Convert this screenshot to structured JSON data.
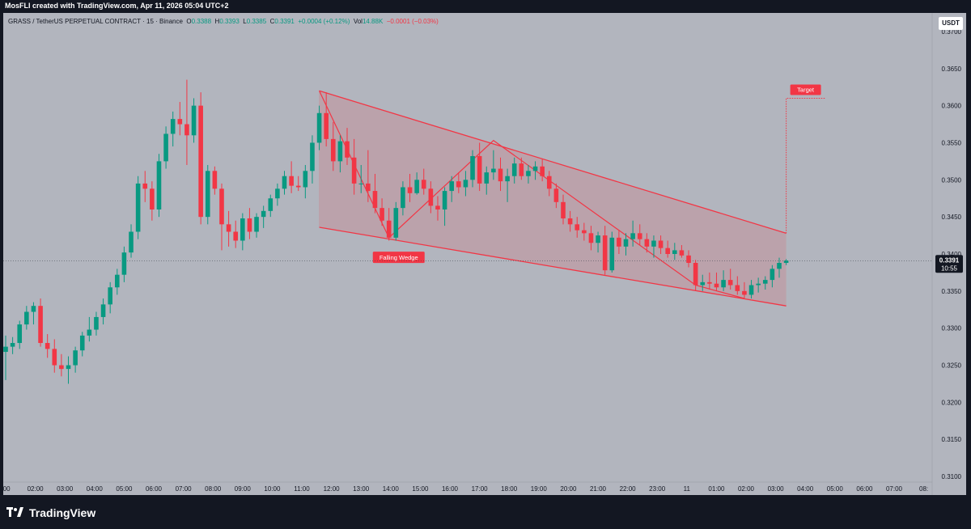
{
  "header": {
    "created_by": "MosFLI created with TradingView.com, Apr 11, 2026 05:04 UTC+2",
    "symbol": "GRASS / TetherUS PERPETUAL CONTRACT · 15 · Binance",
    "o_label": "O",
    "o": "0.3388",
    "h_label": "H",
    "h": "0.3393",
    "l_label": "L",
    "l": "0.3385",
    "c_label": "C",
    "c": "0.3391",
    "change": "+0.0004 (+0.12%)",
    "vol_label": "Vol",
    "vol": "14.88K",
    "vol_change": "−0.0001 (−0.03%)",
    "currency_button": "USDT"
  },
  "footer": {
    "brand": "TradingView",
    "brand_icon": "tradingview-logo-icon"
  },
  "colors": {
    "up": "#089981",
    "down": "#f23645",
    "background": "#b2b5be",
    "frame": "#131722",
    "wedge_fill": "#f23645"
  },
  "chart_data": {
    "type": "candlestick",
    "timeframe": "15",
    "ylim": [
      0.3075,
      0.3725
    ],
    "y_ticks": [
      "0.3700",
      "0.3650",
      "0.3600",
      "0.3550",
      "0.3500",
      "0.3450",
      "0.3400",
      "0.3350",
      "0.3300",
      "0.3250",
      "0.3200",
      "0.3150",
      "0.3100"
    ],
    "x_ticks": [
      ":00",
      "02:00",
      "03:00",
      "04:00",
      "05:00",
      "06:00",
      "07:00",
      "08:00",
      "09:00",
      "10:00",
      "11:00",
      "12:00",
      "13:00",
      "14:00",
      "15:00",
      "16:00",
      "17:00",
      "18:00",
      "19:00",
      "20:00",
      "21:00",
      "22:00",
      "23:00",
      "11",
      "01:00",
      "02:00",
      "03:00",
      "04:00",
      "05:00",
      "06:00",
      "07:00",
      "08:"
    ],
    "last_price": "0.3391",
    "countdown": "10:55",
    "candles": [
      {
        "t": 0,
        "o": 0.3268,
        "h": 0.329,
        "l": 0.323,
        "c": 0.3275
      },
      {
        "t": 0.25,
        "o": 0.3275,
        "h": 0.3288,
        "l": 0.3265,
        "c": 0.328
      },
      {
        "t": 0.5,
        "o": 0.328,
        "h": 0.331,
        "l": 0.3272,
        "c": 0.3305
      },
      {
        "t": 0.75,
        "o": 0.3305,
        "h": 0.333,
        "l": 0.3298,
        "c": 0.3322
      },
      {
        "t": 1,
        "o": 0.3322,
        "h": 0.3335,
        "l": 0.3305,
        "c": 0.333
      },
      {
        "t": 1.25,
        "o": 0.333,
        "h": 0.334,
        "l": 0.3275,
        "c": 0.328
      },
      {
        "t": 1.5,
        "o": 0.328,
        "h": 0.3292,
        "l": 0.326,
        "c": 0.3272
      },
      {
        "t": 1.75,
        "o": 0.3272,
        "h": 0.3285,
        "l": 0.324,
        "c": 0.325
      },
      {
        "t": 2,
        "o": 0.325,
        "h": 0.3265,
        "l": 0.3235,
        "c": 0.3245
      },
      {
        "t": 2.25,
        "o": 0.3245,
        "h": 0.3262,
        "l": 0.3225,
        "c": 0.325
      },
      {
        "t": 2.5,
        "o": 0.325,
        "h": 0.3275,
        "l": 0.324,
        "c": 0.327
      },
      {
        "t": 2.75,
        "o": 0.327,
        "h": 0.3295,
        "l": 0.3262,
        "c": 0.329
      },
      {
        "t": 3,
        "o": 0.329,
        "h": 0.3315,
        "l": 0.3282,
        "c": 0.3298
      },
      {
        "t": 3.25,
        "o": 0.3298,
        "h": 0.3322,
        "l": 0.329,
        "c": 0.3315
      },
      {
        "t": 3.5,
        "o": 0.3315,
        "h": 0.334,
        "l": 0.3305,
        "c": 0.3332
      },
      {
        "t": 3.75,
        "o": 0.3332,
        "h": 0.3362,
        "l": 0.332,
        "c": 0.3355
      },
      {
        "t": 4,
        "o": 0.3355,
        "h": 0.338,
        "l": 0.3345,
        "c": 0.3372
      },
      {
        "t": 4.25,
        "o": 0.3372,
        "h": 0.341,
        "l": 0.3362,
        "c": 0.3402
      },
      {
        "t": 4.5,
        "o": 0.3402,
        "h": 0.344,
        "l": 0.3395,
        "c": 0.343
      },
      {
        "t": 4.75,
        "o": 0.343,
        "h": 0.3505,
        "l": 0.342,
        "c": 0.3495
      },
      {
        "t": 5,
        "o": 0.3495,
        "h": 0.3512,
        "l": 0.347,
        "c": 0.3488
      },
      {
        "t": 5.25,
        "o": 0.3488,
        "h": 0.3498,
        "l": 0.3445,
        "c": 0.346
      },
      {
        "t": 5.5,
        "o": 0.346,
        "h": 0.3535,
        "l": 0.345,
        "c": 0.3525
      },
      {
        "t": 5.75,
        "o": 0.3525,
        "h": 0.3572,
        "l": 0.3515,
        "c": 0.3562
      },
      {
        "t": 6,
        "o": 0.3562,
        "h": 0.3592,
        "l": 0.3545,
        "c": 0.3582
      },
      {
        "t": 6.25,
        "o": 0.3582,
        "h": 0.3605,
        "l": 0.356,
        "c": 0.3575
      },
      {
        "t": 6.5,
        "o": 0.3575,
        "h": 0.3635,
        "l": 0.352,
        "c": 0.356
      },
      {
        "t": 6.75,
        "o": 0.356,
        "h": 0.361,
        "l": 0.355,
        "c": 0.36
      },
      {
        "t": 7,
        "o": 0.36,
        "h": 0.3618,
        "l": 0.344,
        "c": 0.345
      },
      {
        "t": 7.25,
        "o": 0.345,
        "h": 0.352,
        "l": 0.344,
        "c": 0.3512
      },
      {
        "t": 7.5,
        "o": 0.3512,
        "h": 0.3518,
        "l": 0.348,
        "c": 0.3488
      },
      {
        "t": 7.75,
        "o": 0.3488,
        "h": 0.3495,
        "l": 0.3405,
        "c": 0.344
      },
      {
        "t": 8,
        "o": 0.344,
        "h": 0.3458,
        "l": 0.341,
        "c": 0.343
      },
      {
        "t": 8.25,
        "o": 0.343,
        "h": 0.3445,
        "l": 0.3408,
        "c": 0.3418
      },
      {
        "t": 8.5,
        "o": 0.3418,
        "h": 0.3455,
        "l": 0.3405,
        "c": 0.3448
      },
      {
        "t": 8.75,
        "o": 0.3448,
        "h": 0.3462,
        "l": 0.342,
        "c": 0.343
      },
      {
        "t": 9,
        "o": 0.343,
        "h": 0.3455,
        "l": 0.3422,
        "c": 0.345
      },
      {
        "t": 9.25,
        "o": 0.345,
        "h": 0.3465,
        "l": 0.3435,
        "c": 0.3458
      },
      {
        "t": 9.5,
        "o": 0.3458,
        "h": 0.348,
        "l": 0.345,
        "c": 0.3475
      },
      {
        "t": 9.75,
        "o": 0.3475,
        "h": 0.3495,
        "l": 0.3465,
        "c": 0.3488
      },
      {
        "t": 10,
        "o": 0.3488,
        "h": 0.3512,
        "l": 0.348,
        "c": 0.3505
      },
      {
        "t": 10.25,
        "o": 0.3505,
        "h": 0.3525,
        "l": 0.3482,
        "c": 0.3492
      },
      {
        "t": 10.5,
        "o": 0.3492,
        "h": 0.3505,
        "l": 0.3485,
        "c": 0.349
      },
      {
        "t": 10.75,
        "o": 0.349,
        "h": 0.352,
        "l": 0.3475,
        "c": 0.3512
      },
      {
        "t": 11,
        "o": 0.3512,
        "h": 0.356,
        "l": 0.3495,
        "c": 0.355
      },
      {
        "t": 11.25,
        "o": 0.355,
        "h": 0.36,
        "l": 0.354,
        "c": 0.359
      },
      {
        "t": 11.5,
        "o": 0.359,
        "h": 0.3618,
        "l": 0.3545,
        "c": 0.3555
      },
      {
        "t": 11.75,
        "o": 0.3555,
        "h": 0.3578,
        "l": 0.3512,
        "c": 0.3525
      },
      {
        "t": 12,
        "o": 0.3525,
        "h": 0.356,
        "l": 0.351,
        "c": 0.3552
      },
      {
        "t": 12.25,
        "o": 0.3552,
        "h": 0.357,
        "l": 0.352,
        "c": 0.353
      },
      {
        "t": 12.5,
        "o": 0.353,
        "h": 0.3555,
        "l": 0.348,
        "c": 0.3495
      },
      {
        "t": 12.75,
        "o": 0.3495,
        "h": 0.352,
        "l": 0.3482,
        "c": 0.3495
      },
      {
        "t": 13,
        "o": 0.3495,
        "h": 0.354,
        "l": 0.347,
        "c": 0.3485
      },
      {
        "t": 13.25,
        "o": 0.3485,
        "h": 0.3508,
        "l": 0.3455,
        "c": 0.3462
      },
      {
        "t": 13.5,
        "o": 0.3462,
        "h": 0.3475,
        "l": 0.3438,
        "c": 0.3445
      },
      {
        "t": 13.75,
        "o": 0.3445,
        "h": 0.3462,
        "l": 0.3418,
        "c": 0.3422
      },
      {
        "t": 14,
        "o": 0.3422,
        "h": 0.347,
        "l": 0.3418,
        "c": 0.3462
      },
      {
        "t": 14.25,
        "o": 0.3462,
        "h": 0.3498,
        "l": 0.3452,
        "c": 0.349
      },
      {
        "t": 14.5,
        "o": 0.349,
        "h": 0.3508,
        "l": 0.347,
        "c": 0.3482
      },
      {
        "t": 14.75,
        "o": 0.3482,
        "h": 0.351,
        "l": 0.348,
        "c": 0.35
      },
      {
        "t": 15,
        "o": 0.35,
        "h": 0.3515,
        "l": 0.348,
        "c": 0.3488
      },
      {
        "t": 15.25,
        "o": 0.3488,
        "h": 0.3498,
        "l": 0.3455,
        "c": 0.3465
      },
      {
        "t": 15.5,
        "o": 0.3465,
        "h": 0.3478,
        "l": 0.3445,
        "c": 0.346
      },
      {
        "t": 15.75,
        "o": 0.346,
        "h": 0.349,
        "l": 0.3438,
        "c": 0.3485
      },
      {
        "t": 16,
        "o": 0.3485,
        "h": 0.3505,
        "l": 0.347,
        "c": 0.3498
      },
      {
        "t": 16.25,
        "o": 0.3498,
        "h": 0.351,
        "l": 0.3482,
        "c": 0.349
      },
      {
        "t": 16.5,
        "o": 0.349,
        "h": 0.3512,
        "l": 0.3478,
        "c": 0.35
      },
      {
        "t": 16.75,
        "o": 0.35,
        "h": 0.354,
        "l": 0.349,
        "c": 0.3532
      },
      {
        "t": 17,
        "o": 0.3532,
        "h": 0.355,
        "l": 0.3485,
        "c": 0.3495
      },
      {
        "t": 17.25,
        "o": 0.3495,
        "h": 0.3518,
        "l": 0.348,
        "c": 0.351
      },
      {
        "t": 17.5,
        "o": 0.351,
        "h": 0.354,
        "l": 0.35,
        "c": 0.3515
      },
      {
        "t": 17.75,
        "o": 0.3515,
        "h": 0.353,
        "l": 0.3485,
        "c": 0.3498
      },
      {
        "t": 18,
        "o": 0.3498,
        "h": 0.3515,
        "l": 0.347,
        "c": 0.3505
      },
      {
        "t": 18.25,
        "o": 0.3505,
        "h": 0.353,
        "l": 0.3495,
        "c": 0.3522
      },
      {
        "t": 18.5,
        "o": 0.3522,
        "h": 0.353,
        "l": 0.35,
        "c": 0.3505
      },
      {
        "t": 18.75,
        "o": 0.3505,
        "h": 0.352,
        "l": 0.3495,
        "c": 0.3512
      },
      {
        "t": 19,
        "o": 0.3512,
        "h": 0.3525,
        "l": 0.35,
        "c": 0.3518
      },
      {
        "t": 19.25,
        "o": 0.3518,
        "h": 0.3528,
        "l": 0.3498,
        "c": 0.3505
      },
      {
        "t": 19.5,
        "o": 0.3505,
        "h": 0.3512,
        "l": 0.3478,
        "c": 0.3488
      },
      {
        "t": 19.75,
        "o": 0.3488,
        "h": 0.3495,
        "l": 0.3462,
        "c": 0.347
      },
      {
        "t": 20,
        "o": 0.347,
        "h": 0.348,
        "l": 0.344,
        "c": 0.3448
      },
      {
        "t": 20.25,
        "o": 0.3448,
        "h": 0.3458,
        "l": 0.343,
        "c": 0.344
      },
      {
        "t": 20.5,
        "o": 0.344,
        "h": 0.345,
        "l": 0.3422,
        "c": 0.3432
      },
      {
        "t": 20.75,
        "o": 0.3432,
        "h": 0.3442,
        "l": 0.3418,
        "c": 0.3428
      },
      {
        "t": 21,
        "o": 0.3428,
        "h": 0.3438,
        "l": 0.3405,
        "c": 0.3415
      },
      {
        "t": 21.25,
        "o": 0.3415,
        "h": 0.343,
        "l": 0.3402,
        "c": 0.3425
      },
      {
        "t": 21.5,
        "o": 0.3425,
        "h": 0.3438,
        "l": 0.3372,
        "c": 0.3378
      },
      {
        "t": 21.75,
        "o": 0.3378,
        "h": 0.343,
        "l": 0.3375,
        "c": 0.3422
      },
      {
        "t": 22,
        "o": 0.3422,
        "h": 0.3432,
        "l": 0.34,
        "c": 0.341
      },
      {
        "t": 22.25,
        "o": 0.341,
        "h": 0.3428,
        "l": 0.3398,
        "c": 0.342
      },
      {
        "t": 22.5,
        "o": 0.342,
        "h": 0.3445,
        "l": 0.341,
        "c": 0.3428
      },
      {
        "t": 22.75,
        "o": 0.3428,
        "h": 0.344,
        "l": 0.3412,
        "c": 0.342
      },
      {
        "t": 23,
        "o": 0.342,
        "h": 0.3428,
        "l": 0.3402,
        "c": 0.341
      },
      {
        "t": 23.25,
        "o": 0.341,
        "h": 0.3425,
        "l": 0.3395,
        "c": 0.3418
      },
      {
        "t": 23.5,
        "o": 0.3418,
        "h": 0.3425,
        "l": 0.34,
        "c": 0.3408
      },
      {
        "t": 23.75,
        "o": 0.3408,
        "h": 0.3418,
        "l": 0.3395,
        "c": 0.34
      },
      {
        "t": 24,
        "o": 0.34,
        "h": 0.3415,
        "l": 0.3392,
        "c": 0.3405
      },
      {
        "t": 24.25,
        "o": 0.3405,
        "h": 0.3412,
        "l": 0.3395,
        "c": 0.3398
      },
      {
        "t": 24.5,
        "o": 0.3398,
        "h": 0.3405,
        "l": 0.3382,
        "c": 0.3388
      },
      {
        "t": 24.75,
        "o": 0.3388,
        "h": 0.3392,
        "l": 0.335,
        "c": 0.3358
      },
      {
        "t": 25,
        "o": 0.3358,
        "h": 0.3372,
        "l": 0.335,
        "c": 0.3362
      },
      {
        "t": 25.25,
        "o": 0.3362,
        "h": 0.3375,
        "l": 0.3352,
        "c": 0.336
      },
      {
        "t": 25.5,
        "o": 0.336,
        "h": 0.3375,
        "l": 0.335,
        "c": 0.3355
      },
      {
        "t": 25.75,
        "o": 0.3355,
        "h": 0.3378,
        "l": 0.335,
        "c": 0.3365
      },
      {
        "t": 26,
        "o": 0.3365,
        "h": 0.338,
        "l": 0.3352,
        "c": 0.3358
      },
      {
        "t": 26.25,
        "o": 0.3358,
        "h": 0.337,
        "l": 0.3345,
        "c": 0.335
      },
      {
        "t": 26.5,
        "o": 0.335,
        "h": 0.3362,
        "l": 0.334,
        "c": 0.3345
      },
      {
        "t": 26.75,
        "o": 0.3345,
        "h": 0.3365,
        "l": 0.334,
        "c": 0.3358
      },
      {
        "t": 27,
        "o": 0.3358,
        "h": 0.3368,
        "l": 0.3348,
        "c": 0.336
      },
      {
        "t": 27.25,
        "o": 0.336,
        "h": 0.337,
        "l": 0.3352,
        "c": 0.3365
      },
      {
        "t": 27.5,
        "o": 0.3365,
        "h": 0.3385,
        "l": 0.3355,
        "c": 0.338
      },
      {
        "t": 27.75,
        "o": 0.338,
        "h": 0.3395,
        "l": 0.3368,
        "c": 0.3388
      },
      {
        "t": 28,
        "o": 0.3388,
        "h": 0.3393,
        "l": 0.3385,
        "c": 0.3391
      }
    ],
    "annotations": [
      {
        "type": "falling-wedge",
        "upper": [
          [
            11.25,
            0.362
          ],
          [
            28,
            0.3428
          ]
        ],
        "lower": [
          [
            11.25,
            0.3436
          ],
          [
            28,
            0.333
          ]
        ],
        "label": "Falling Wedge"
      },
      {
        "type": "path",
        "points": [
          [
            11.25,
            0.362
          ],
          [
            13.75,
            0.3422
          ],
          [
            17.5,
            0.3553
          ],
          [
            24.75,
            0.3358
          ],
          [
            26.5,
            0.334
          ]
        ]
      },
      {
        "type": "target",
        "from": [
          28,
          0.3428
        ],
        "to": [
          28,
          0.361
        ],
        "label": "Target"
      }
    ]
  }
}
